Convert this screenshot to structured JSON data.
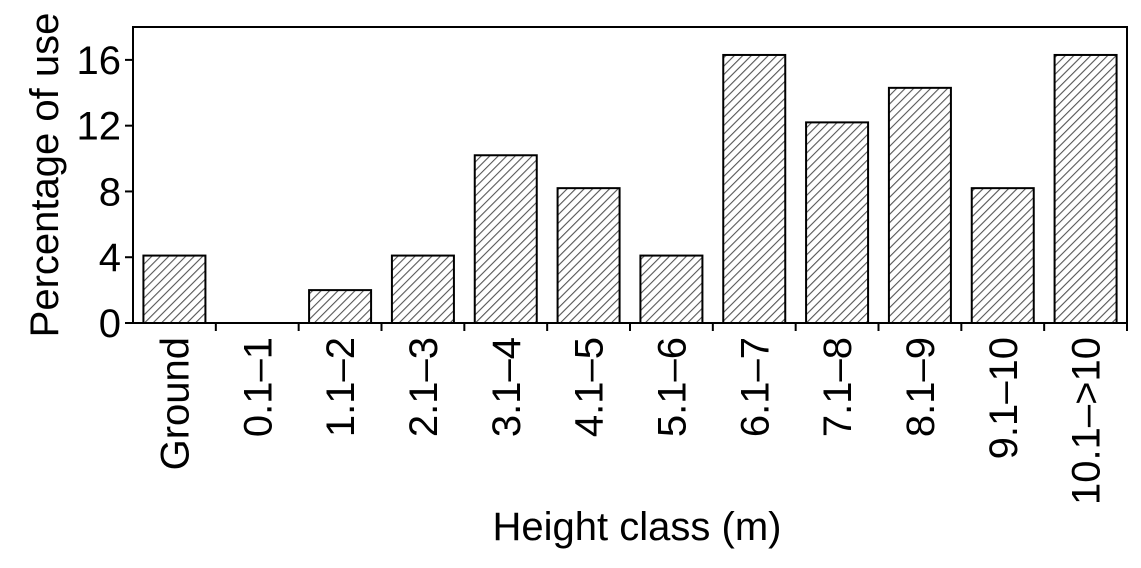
{
  "chart_data": {
    "type": "bar",
    "x_label": "Height class (m)",
    "y_label": "Percentage of use",
    "categories": [
      "Ground",
      "0.1–1",
      "1.1–2",
      "2.1–3",
      "3.1–4",
      "4.1–5",
      "5.1–6",
      "6.1–7",
      "7.1–8",
      "8.1–9",
      "9.1–10",
      "10.1–>10"
    ],
    "values": [
      4.1,
      0,
      2.0,
      4.1,
      10.2,
      8.2,
      4.1,
      16.3,
      12.2,
      14.3,
      8.2,
      16.3
    ],
    "color": "#555555",
    "ylim": [
      0,
      18
    ],
    "yticks": [
      0,
      4,
      8,
      12,
      16
    ],
    "grid": false
  }
}
